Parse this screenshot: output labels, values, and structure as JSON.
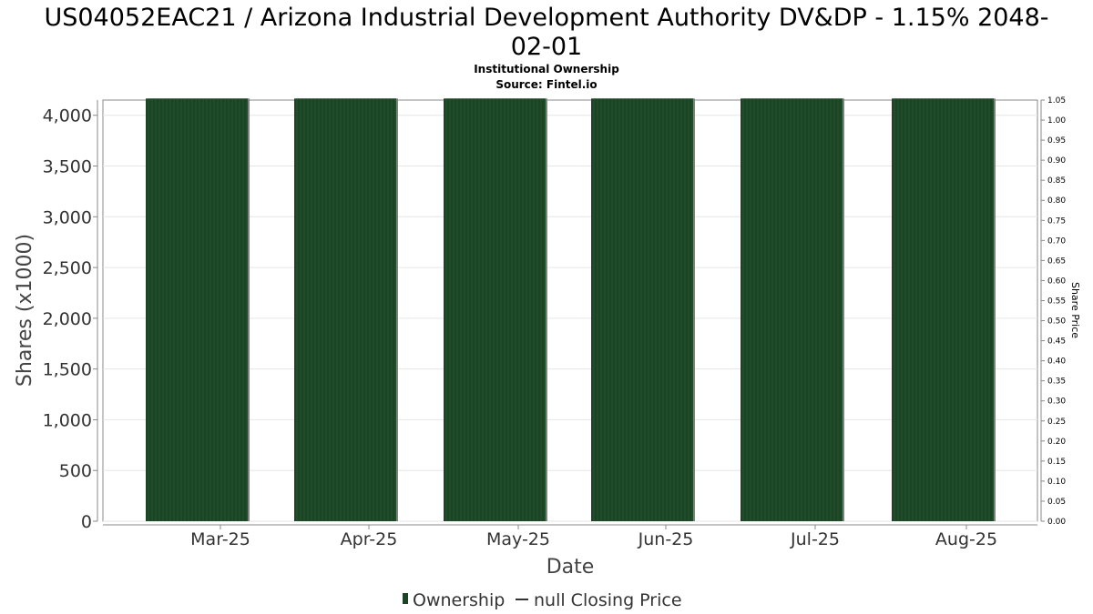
{
  "chart_data": {
    "type": "bar",
    "title_line1": "US04052EAC21 / Arizona Industrial Development Authority DV&DP - 1.15% 2048-",
    "title_line2": "02-01",
    "subtitle": "Institutional Ownership",
    "source": "Source: Fintel.io",
    "categories": [
      "Mar-25",
      "Apr-25",
      "May-25",
      "Jun-25",
      "Jul-25",
      "Aug-25"
    ],
    "series": [
      {
        "name": "Ownership",
        "values": [
          4165,
          4165,
          4165,
          4165,
          4165,
          4165
        ],
        "color": "#1a4423"
      }
    ],
    "secondary_series": {
      "name": "null Closing Price",
      "values": []
    },
    "xlabel": "Date",
    "ylabel": "Shares (x1000)",
    "y2label": "Share Price",
    "ylim": [
      0,
      4150
    ],
    "y2lim": [
      0,
      1.05
    ],
    "yticks": [
      "0",
      "500",
      "1,000",
      "1,500",
      "2,000",
      "2,500",
      "3,000",
      "3,500",
      "4,000"
    ],
    "y2ticks": [
      "0.00",
      "0.05",
      "0.10",
      "0.15",
      "0.20",
      "0.25",
      "0.30",
      "0.35",
      "0.40",
      "0.45",
      "0.50",
      "0.55",
      "0.60",
      "0.65",
      "0.70",
      "0.75",
      "0.80",
      "0.85",
      "0.90",
      "0.95",
      "1.00",
      "1.05"
    ],
    "grid": true,
    "legend_position": "bottom-center",
    "colors": {
      "bar": "#1a4423",
      "bar_shadow": "#808080",
      "grid": "#e6e6e6",
      "axis": "#888888"
    }
  }
}
